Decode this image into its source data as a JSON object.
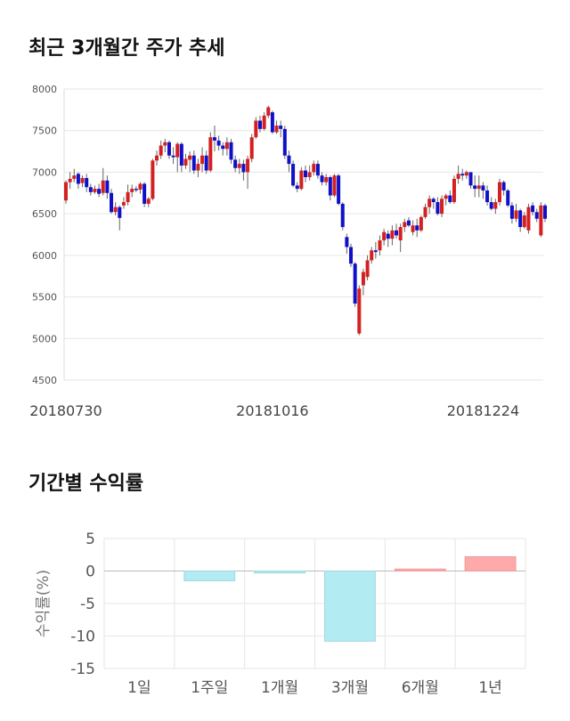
{
  "titles": {
    "price": "최근 3개월간 주가 추세",
    "returns": "기간별 수익률"
  },
  "colors": {
    "up": "#d42020",
    "down": "#1010c8",
    "bar_negative": "#b2ebf2",
    "bar_positive": "#ffaaaa",
    "grid": "#e6e6e6"
  },
  "chart_data": [
    {
      "type": "candlestick",
      "title": "최근 3개월간 주가 추세",
      "ylim": [
        4500,
        8000
      ],
      "yticks": [
        4500,
        5000,
        5500,
        6000,
        6500,
        7000,
        7500,
        8000
      ],
      "x_tick_labels": [
        "20180730",
        "20181016",
        "20181224"
      ],
      "x_tick_index": [
        0,
        50,
        101
      ],
      "grid": true,
      "candles": [
        [
          6660,
          6880,
          6620,
          6900
        ],
        [
          6880,
          6920,
          6800,
          7000
        ],
        [
          6920,
          6960,
          6880,
          7040
        ],
        [
          6980,
          6860,
          6800,
          7000
        ],
        [
          6870,
          6930,
          6820,
          6960
        ],
        [
          6930,
          6820,
          6760,
          6980
        ],
        [
          6820,
          6760,
          6720,
          6860
        ],
        [
          6760,
          6800,
          6740,
          6840
        ],
        [
          6800,
          6740,
          6700,
          6860
        ],
        [
          6750,
          6900,
          6720,
          7050
        ],
        [
          6900,
          6750,
          6680,
          6960
        ],
        [
          6750,
          6520,
          6500,
          6800
        ],
        [
          6520,
          6580,
          6480,
          6640
        ],
        [
          6580,
          6450,
          6300,
          6600
        ],
        [
          6600,
          6640,
          6560,
          6700
        ],
        [
          6640,
          6760,
          6600,
          6850
        ],
        [
          6760,
          6800,
          6700,
          6850
        ],
        [
          6800,
          6790,
          6760,
          6830
        ],
        [
          6790,
          6860,
          6740,
          6880
        ],
        [
          6860,
          6620,
          6580,
          6880
        ],
        [
          6620,
          6680,
          6580,
          6700
        ],
        [
          6680,
          7140,
          6660,
          7160
        ],
        [
          7140,
          7200,
          7080,
          7260
        ],
        [
          7200,
          7320,
          7160,
          7380
        ],
        [
          7320,
          7360,
          7240,
          7400
        ],
        [
          7360,
          7200,
          7160,
          7380
        ],
        [
          7200,
          7180,
          7100,
          7300
        ],
        [
          7180,
          7340,
          7000,
          7360
        ],
        [
          7340,
          7080,
          7000,
          7360
        ],
        [
          7080,
          7160,
          7040,
          7220
        ],
        [
          7150,
          7200,
          7000,
          7250
        ],
        [
          7200,
          7020,
          6980,
          7260
        ],
        [
          7020,
          7100,
          6940,
          7160
        ],
        [
          7100,
          7200,
          7000,
          7300
        ],
        [
          7200,
          7020,
          6980,
          7260
        ],
        [
          7020,
          7420,
          7000,
          7480
        ],
        [
          7420,
          7380,
          7250,
          7560
        ],
        [
          7380,
          7320,
          7260,
          7440
        ],
        [
          7320,
          7280,
          7200,
          7360
        ],
        [
          7280,
          7360,
          7200,
          7420
        ],
        [
          7360,
          7150,
          7100,
          7400
        ],
        [
          7150,
          7050,
          7000,
          7200
        ],
        [
          7050,
          7100,
          6980,
          7160
        ],
        [
          7100,
          7000,
          6900,
          7150
        ],
        [
          7000,
          7160,
          6800,
          7200
        ],
        [
          7160,
          7420,
          7120,
          7460
        ],
        [
          7420,
          7620,
          7400,
          7660
        ],
        [
          7620,
          7520,
          7480,
          7680
        ],
        [
          7520,
          7680,
          7500,
          7720
        ],
        [
          7680,
          7780,
          7650,
          7800
        ],
        [
          7720,
          7480,
          7460,
          7740
        ],
        [
          7480,
          7560,
          7460,
          7620
        ],
        [
          7560,
          7520,
          7420,
          7620
        ],
        [
          7520,
          7200,
          7160,
          7560
        ],
        [
          7200,
          7100,
          7000,
          7260
        ],
        [
          7100,
          6840,
          6820,
          7140
        ],
        [
          6840,
          6800,
          6760,
          6880
        ],
        [
          6800,
          7020,
          6780,
          7060
        ],
        [
          7020,
          6940,
          6880,
          7080
        ],
        [
          6940,
          7000,
          6900,
          7080
        ],
        [
          7000,
          7100,
          6960,
          7140
        ],
        [
          7100,
          6960,
          6920,
          7140
        ],
        [
          6960,
          6880,
          6840,
          7000
        ],
        [
          6880,
          6940,
          6840,
          6980
        ],
        [
          6940,
          6720,
          6660,
          6960
        ],
        [
          6720,
          6960,
          6700,
          6980
        ],
        [
          6960,
          6620,
          6600,
          6980
        ],
        [
          6620,
          6340,
          6300,
          6640
        ],
        [
          6220,
          6100,
          6020,
          6260
        ],
        [
          6100,
          5900,
          5860,
          6140
        ],
        [
          5900,
          5420,
          5380,
          5920
        ],
        [
          5060,
          5600,
          5040,
          5640
        ],
        [
          5640,
          5800,
          5520,
          5840
        ],
        [
          5740,
          5940,
          5700,
          6000
        ],
        [
          5940,
          6060,
          5900,
          6100
        ],
        [
          6060,
          6040,
          5960,
          6160
        ],
        [
          6060,
          6180,
          6000,
          6240
        ],
        [
          6180,
          6280,
          6120,
          6320
        ],
        [
          6260,
          6200,
          6100,
          6300
        ],
        [
          6200,
          6300,
          6120,
          6360
        ],
        [
          6300,
          6240,
          6200,
          6380
        ],
        [
          6180,
          6340,
          6040,
          6380
        ],
        [
          6340,
          6400,
          6280,
          6440
        ],
        [
          6420,
          6360,
          6340,
          6460
        ],
        [
          6280,
          6360,
          6240,
          6420
        ],
        [
          6360,
          6300,
          6220,
          6440
        ],
        [
          6300,
          6460,
          6280,
          6480
        ],
        [
          6460,
          6580,
          6440,
          6620
        ],
        [
          6580,
          6680,
          6500,
          6720
        ],
        [
          6680,
          6640,
          6560,
          6700
        ],
        [
          6640,
          6500,
          6480,
          6700
        ],
        [
          6500,
          6680,
          6460,
          6720
        ],
        [
          6680,
          6720,
          6600,
          6740
        ],
        [
          6720,
          6640,
          6620,
          6780
        ],
        [
          6640,
          6920,
          6620,
          6960
        ],
        [
          6920,
          6980,
          6860,
          7080
        ],
        [
          6980,
          6960,
          6900,
          7040
        ],
        [
          6960,
          7000,
          6920,
          7020
        ],
        [
          7000,
          6840,
          6800,
          7000
        ],
        [
          6840,
          6800,
          6700,
          6960
        ],
        [
          6800,
          6840,
          6700,
          6960
        ],
        [
          6840,
          6780,
          6680,
          6880
        ],
        [
          6780,
          6640,
          6600,
          6840
        ],
        [
          6640,
          6560,
          6540,
          6700
        ],
        [
          6560,
          6640,
          6500,
          6680
        ],
        [
          6640,
          6880,
          6600,
          6920
        ],
        [
          6880,
          6780,
          6720,
          6900
        ],
        [
          6780,
          6600,
          6580,
          6800
        ],
        [
          6600,
          6440,
          6380,
          6640
        ],
        [
          6440,
          6540,
          6400,
          6620
        ],
        [
          6540,
          6340,
          6280,
          6560
        ],
        [
          6340,
          6480,
          6320,
          6520
        ],
        [
          6300,
          6580,
          6260,
          6620
        ],
        [
          6600,
          6520,
          6480,
          6640
        ],
        [
          6520,
          6440,
          6400,
          6560
        ],
        [
          6240,
          6600,
          6220,
          6640
        ],
        [
          6600,
          6440,
          6400,
          6620
        ]
      ]
    },
    {
      "type": "bar",
      "title": "기간별 수익률",
      "ylabel": "수익률(%)",
      "categories": [
        "1일",
        "1주일",
        "1개월",
        "3개월",
        "6개월",
        "1년"
      ],
      "values": [
        0,
        -1.5,
        -0.3,
        -10.8,
        0.3,
        2.2
      ],
      "ylim": [
        -15,
        5
      ],
      "yticks": [
        -15,
        -10,
        -5,
        0,
        5
      ],
      "grid": true
    }
  ]
}
